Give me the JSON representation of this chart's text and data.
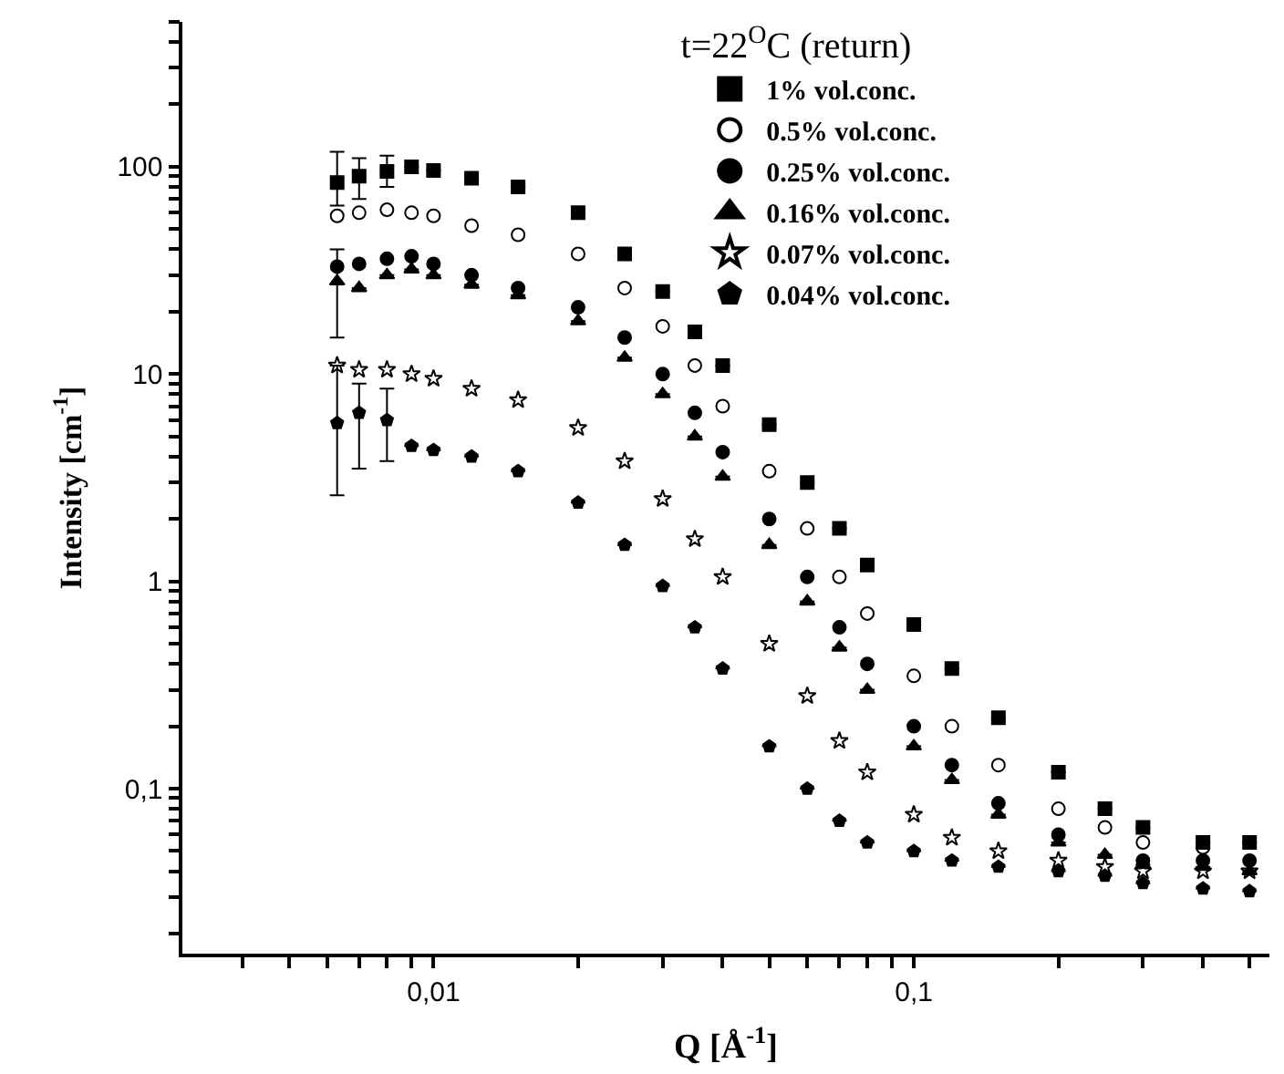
{
  "chart_data": {
    "type": "scatter",
    "title": "t=22$^{O}$C (return)",
    "xlabel": "Q [Å$^{-1}$]",
    "ylabel": "Intensity [cm$^{-1}$]",
    "log": "xy",
    "legend": "top right",
    "x": [
      0.0063,
      0.007,
      0.008,
      0.009,
      0.01,
      0.012,
      0.015,
      0.02,
      0.025,
      0.03,
      0.035,
      0.04,
      0.05,
      0.06,
      0.07,
      0.08,
      0.1,
      0.12,
      0.15,
      0.2,
      0.25,
      0.3,
      0.4,
      0.5
    ],
    "xlim": [
      0.003,
      0.55
    ],
    "ylim": [
      0.016,
      500
    ],
    "xticks": [
      {
        "value": 0.004,
        "label": null
      },
      {
        "value": 0.005,
        "label": null
      },
      {
        "value": 0.006,
        "label": null
      },
      {
        "value": 0.007,
        "label": null
      },
      {
        "value": 0.008,
        "label": null
      },
      {
        "value": 0.009,
        "label": null
      },
      {
        "value": 0.01,
        "label": "0,01"
      },
      {
        "value": 0.02,
        "label": null
      },
      {
        "value": 0.03,
        "label": null
      },
      {
        "value": 0.04,
        "label": null
      },
      {
        "value": 0.05,
        "label": null
      },
      {
        "value": 0.06,
        "label": null
      },
      {
        "value": 0.07,
        "label": null
      },
      {
        "value": 0.08,
        "label": null
      },
      {
        "value": 0.09,
        "label": null
      },
      {
        "value": 0.1,
        "label": "0,1"
      },
      {
        "value": 0.2,
        "label": null
      },
      {
        "value": 0.3,
        "label": null
      },
      {
        "value": 0.4,
        "label": null
      },
      {
        "value": 0.5,
        "label": null
      }
    ],
    "yticks": [
      {
        "value": 0.02,
        "label": null
      },
      {
        "value": 0.03,
        "label": null
      },
      {
        "value": 0.04,
        "label": null
      },
      {
        "value": 0.05,
        "label": null
      },
      {
        "value": 0.06,
        "label": null
      },
      {
        "value": 0.07,
        "label": null
      },
      {
        "value": 0.08,
        "label": null
      },
      {
        "value": 0.09,
        "label": null
      },
      {
        "value": 0.1,
        "label": "0,1"
      },
      {
        "value": 0.2,
        "label": null
      },
      {
        "value": 0.3,
        "label": null
      },
      {
        "value": 0.4,
        "label": null
      },
      {
        "value": 0.5,
        "label": null
      },
      {
        "value": 0.6,
        "label": null
      },
      {
        "value": 0.7,
        "label": null
      },
      {
        "value": 0.8,
        "label": null
      },
      {
        "value": 0.9,
        "label": null
      },
      1,
      {
        "value": 2,
        "label": null
      },
      {
        "value": 3,
        "label": null
      },
      {
        "value": 4,
        "label": null
      },
      {
        "value": 5,
        "label": null
      },
      {
        "value": 6,
        "label": null
      },
      {
        "value": 7,
        "label": null
      },
      {
        "value": 8,
        "label": null
      },
      {
        "value": 9,
        "label": null
      },
      10,
      {
        "value": 20,
        "label": null
      },
      {
        "value": 30,
        "label": null
      },
      {
        "value": 40,
        "label": null
      },
      {
        "value": 50,
        "label": null
      },
      {
        "value": 60,
        "label": null
      },
      {
        "value": 70,
        "label": null
      },
      {
        "value": 80,
        "label": null
      },
      {
        "value": 90,
        "label": null
      },
      100,
      {
        "value": 200,
        "label": null
      },
      {
        "value": 300,
        "label": null
      },
      {
        "value": 400,
        "label": null
      },
      {
        "value": 500,
        "label": null
      }
    ],
    "series": [
      {
        "name": "1% vol.conc.",
        "color": "#000000",
        "marker": "square",
        "values": [
          84,
          90,
          95,
          100,
          96,
          88,
          80,
          60,
          38,
          25,
          16,
          11,
          5.7,
          3.0,
          1.8,
          1.2,
          0.62,
          0.38,
          0.22,
          0.12,
          0.08,
          0.065,
          0.055,
          0.055
        ],
        "errors": [
          [
            65,
            118
          ],
          [
            70,
            110
          ],
          [
            80,
            113
          ],
          null,
          null,
          null,
          null,
          null,
          null,
          null,
          null,
          null,
          null,
          null,
          null,
          null,
          null,
          null,
          null,
          null,
          null,
          null,
          null,
          null
        ]
      },
      {
        "name": "0.5% vol.conc.",
        "color": "#000000",
        "marker": "circle-open",
        "values": [
          58,
          60,
          62,
          60,
          58,
          52,
          47,
          38,
          26,
          17,
          11,
          7,
          3.4,
          1.8,
          1.05,
          0.7,
          0.35,
          0.2,
          0.13,
          0.08,
          0.065,
          0.055,
          0.052,
          null
        ]
      },
      {
        "name": "0.25% vol.conc.",
        "color": "#000000",
        "marker": "circle",
        "values": [
          33,
          34,
          36,
          37,
          34,
          30,
          26,
          21,
          15,
          10,
          6.5,
          4.2,
          2.0,
          1.05,
          0.6,
          0.4,
          0.2,
          0.13,
          0.085,
          0.06,
          null,
          0.045,
          0.045,
          0.045
        ]
      },
      {
        "name": "0.16% vol.conc.",
        "color": "#000000",
        "marker": "triangle",
        "values": [
          28,
          26,
          30,
          32,
          30,
          27,
          24,
          18,
          12,
          8,
          5.0,
          3.2,
          1.5,
          0.8,
          0.48,
          0.3,
          0.16,
          0.11,
          0.075,
          0.055,
          0.048,
          0.043,
          0.042,
          0.04
        ],
        "errors": [
          [
            15,
            40
          ],
          null,
          null,
          null,
          null,
          null,
          null,
          null,
          null,
          null,
          null,
          null,
          null,
          null,
          null,
          null,
          null,
          null,
          null,
          null,
          null,
          null,
          null,
          null
        ]
      },
      {
        "name": "0.07% vol.conc.",
        "color": "#000000",
        "marker": "star-open",
        "values": [
          11,
          10.5,
          10.5,
          10,
          9.5,
          8.5,
          7.5,
          5.5,
          3.8,
          2.5,
          1.6,
          1.05,
          0.5,
          0.28,
          0.17,
          0.12,
          0.075,
          0.058,
          0.05,
          0.045,
          0.042,
          0.04,
          0.04,
          0.04
        ]
      },
      {
        "name": "0.04% vol.conc.",
        "color": "#000000",
        "values": [
          5.8,
          6.5,
          6.0,
          4.5,
          4.3,
          4.0,
          3.4,
          2.4,
          1.5,
          0.95,
          0.6,
          0.38,
          0.16,
          0.1,
          0.07,
          0.055,
          0.05,
          0.045,
          0.042,
          0.04,
          0.038,
          0.035,
          0.033,
          0.032
        ],
        "errors": [
          [
            2.6,
            11
          ],
          [
            3.5,
            9
          ],
          [
            3.8,
            8.5
          ],
          null,
          null,
          null,
          null,
          null,
          null,
          null,
          null,
          null,
          null,
          null,
          null,
          null,
          null,
          null,
          null,
          null,
          null,
          null,
          null,
          null
        ]
      }
    ]
  }
}
